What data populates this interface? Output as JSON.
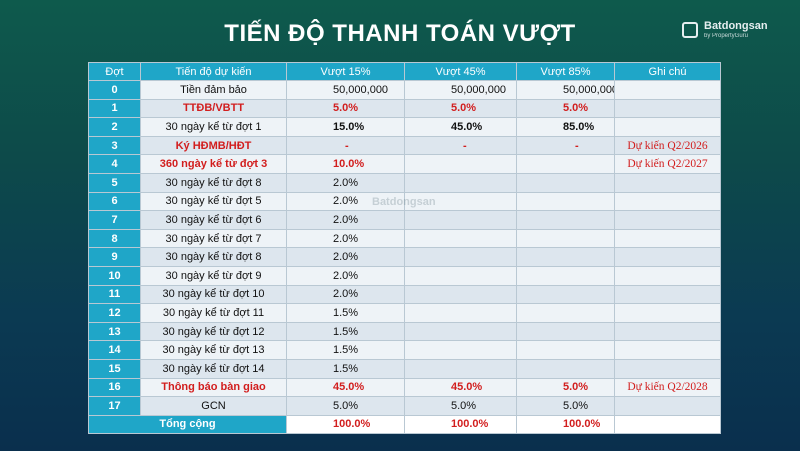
{
  "title": "TIẾN ĐỘ THANH TOÁN VƯỢT",
  "brand": {
    "name": "Batdongsan",
    "sub": "by PropertyGuru"
  },
  "watermark": "Batdongsan",
  "columns": [
    "Đợt",
    "Tiến độ dự kiến",
    "Vượt 15%",
    "Vượt 45%",
    "Vượt 85%",
    "Ghi chú"
  ],
  "rows": [
    {
      "dot": "0",
      "desc": "Tiền đảm bảo",
      "v15": "50,000,000",
      "v45": "50,000,000",
      "v85": "50,000,000",
      "note": "",
      "style": "normal"
    },
    {
      "dot": "1",
      "desc": "TTĐB/VBTT",
      "v15": "5.0%",
      "v45": "5.0%",
      "v85": "5.0%",
      "note": "",
      "style": "red"
    },
    {
      "dot": "2",
      "desc": "30 ngày kể từ đợt 1",
      "v15": "15.0%",
      "v45": "45.0%",
      "v85": "85.0%",
      "note": "",
      "style": "bold-values"
    },
    {
      "dot": "3",
      "desc": "Ký HĐMB/HĐT",
      "v15": "-",
      "v45": "-",
      "v85": "-",
      "note": "Dự kiến Q2/2026",
      "style": "red"
    },
    {
      "dot": "4",
      "desc": "360 ngày kể từ đợt 3",
      "v15": "10.0%",
      "v45": "",
      "v85": "",
      "note": "Dự kiến Q2/2027",
      "style": "red"
    },
    {
      "dot": "5",
      "desc": "30 ngày kể từ đợt 8",
      "v15": "2.0%",
      "v45": "",
      "v85": "",
      "note": "",
      "style": "normal"
    },
    {
      "dot": "6",
      "desc": "30 ngày kể từ đợt 5",
      "v15": "2.0%",
      "v45": "",
      "v85": "",
      "note": "",
      "style": "normal"
    },
    {
      "dot": "7",
      "desc": "30 ngày kể từ đợt 6",
      "v15": "2.0%",
      "v45": "",
      "v85": "",
      "note": "",
      "style": "normal"
    },
    {
      "dot": "8",
      "desc": "30 ngày kể từ đợt 7",
      "v15": "2.0%",
      "v45": "",
      "v85": "",
      "note": "",
      "style": "normal"
    },
    {
      "dot": "9",
      "desc": "30 ngày kể từ đợt 8",
      "v15": "2.0%",
      "v45": "",
      "v85": "",
      "note": "",
      "style": "normal"
    },
    {
      "dot": "10",
      "desc": "30 ngày kể từ đợt 9",
      "v15": "2.0%",
      "v45": "",
      "v85": "",
      "note": "",
      "style": "normal"
    },
    {
      "dot": "11",
      "desc": "30 ngày kể từ đợt 10",
      "v15": "2.0%",
      "v45": "",
      "v85": "",
      "note": "",
      "style": "normal"
    },
    {
      "dot": "12",
      "desc": "30 ngày kể từ đợt 11",
      "v15": "1.5%",
      "v45": "",
      "v85": "",
      "note": "",
      "style": "normal"
    },
    {
      "dot": "13",
      "desc": "30 ngày kể từ đợt 12",
      "v15": "1.5%",
      "v45": "",
      "v85": "",
      "note": "",
      "style": "normal"
    },
    {
      "dot": "14",
      "desc": "30 ngày kể từ đợt 13",
      "v15": "1.5%",
      "v45": "",
      "v85": "",
      "note": "",
      "style": "normal"
    },
    {
      "dot": "15",
      "desc": "30 ngày kể từ đợt 14",
      "v15": "1.5%",
      "v45": "",
      "v85": "",
      "note": "",
      "style": "normal"
    },
    {
      "dot": "16",
      "desc": "Thông báo bàn giao",
      "v15": "45.0%",
      "v45": "45.0%",
      "v85": "5.0%",
      "note": "Dự kiến Q2/2028",
      "style": "red"
    },
    {
      "dot": "17",
      "desc": "GCN",
      "v15": "5.0%",
      "v45": "5.0%",
      "v85": "5.0%",
      "note": "",
      "style": "normal"
    }
  ],
  "total": {
    "label": "Tổng cộng",
    "v15": "100.0%",
    "v45": "100.0%",
    "v85": "100.0%",
    "note": ""
  },
  "colors": {
    "header": "#1fa6c8",
    "accent_red": "#d21e1e"
  }
}
